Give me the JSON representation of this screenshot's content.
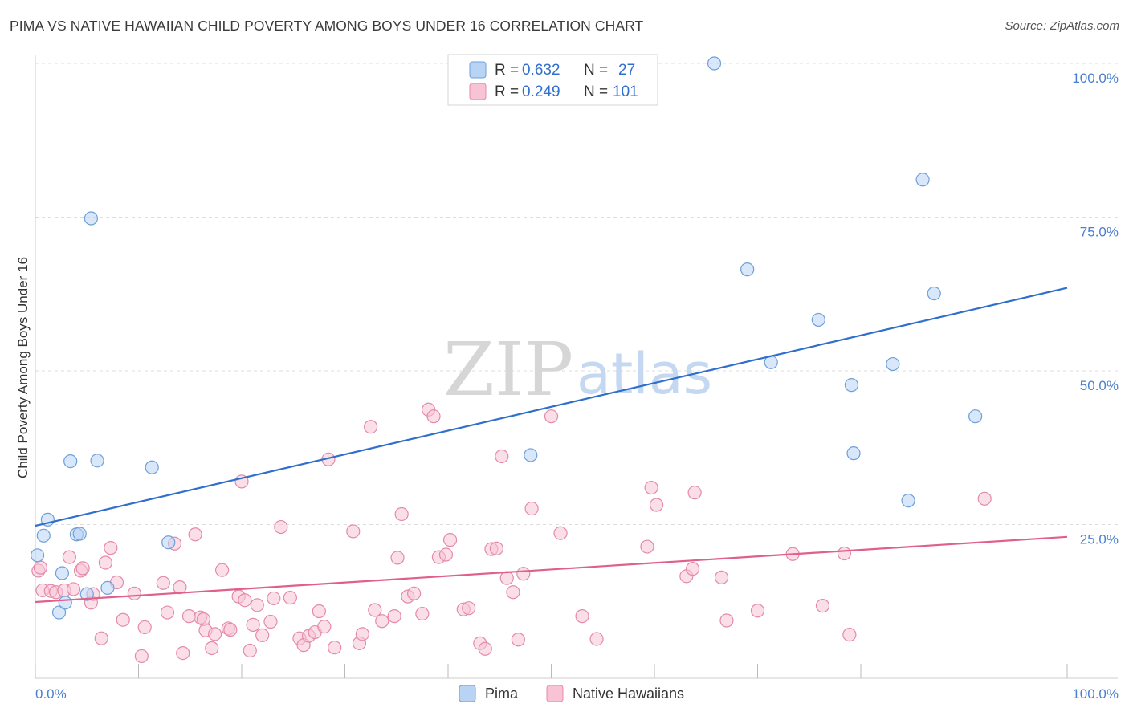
{
  "title": "PIMA VS NATIVE HAWAIIAN CHILD POVERTY AMONG BOYS UNDER 16 CORRELATION CHART",
  "source": "Source: ZipAtlas.com",
  "watermark": {
    "left": "ZIP",
    "right": "atlas"
  },
  "legend": {
    "rows": [
      {
        "r_label": "R =",
        "r_value": "0.632",
        "n_label": "N =",
        "n_value": "27"
      },
      {
        "r_label": "R =",
        "r_value": "0.249",
        "n_label": "N =",
        "n_value": "101"
      }
    ]
  },
  "bottom_legend": [
    "Pima",
    "Native Hawaiians"
  ],
  "colors": {
    "pima_fill": "#b8d3f4",
    "pima_stroke": "#6f9fd8",
    "pima_line": "#2f6fcc",
    "nh_fill": "#f8c4d5",
    "nh_stroke": "#e48aa8",
    "nh_line": "#e0608a",
    "axis_label": "#4a7fd0",
    "grid": "#dddddd"
  },
  "chart_data": {
    "type": "scatter",
    "title": "PIMA VS NATIVE HAWAIIAN CHILD POVERTY AMONG BOYS UNDER 16 CORRELATION CHART",
    "xlabel": "",
    "ylabel": "Child Poverty Among Boys Under 16",
    "xlim": [
      0,
      100
    ],
    "ylim": [
      0,
      100
    ],
    "x_tick_labels": [
      "0.0%",
      "100.0%"
    ],
    "y_ticks": [
      25,
      50,
      75,
      100
    ],
    "y_tick_labels": [
      "25.0%",
      "50.0%",
      "75.0%",
      "100.0%"
    ],
    "series": [
      {
        "name": "Pima",
        "R": 0.632,
        "N": 27,
        "trend": {
          "x0": 0,
          "y0": 24.8,
          "x1": 100,
          "y1": 63.5
        },
        "points": [
          [
            0.2,
            20.0
          ],
          [
            0.8,
            23.2
          ],
          [
            1.2,
            25.8
          ],
          [
            2.3,
            10.7
          ],
          [
            2.6,
            17.1
          ],
          [
            2.9,
            12.3
          ],
          [
            3.4,
            35.3
          ],
          [
            4.0,
            23.4
          ],
          [
            4.3,
            23.5
          ],
          [
            5.0,
            13.7
          ],
          [
            5.4,
            74.8
          ],
          [
            6.0,
            35.4
          ],
          [
            7.0,
            14.7
          ],
          [
            11.3,
            34.3
          ],
          [
            12.9,
            22.1
          ],
          [
            48.0,
            36.3
          ],
          [
            65.8,
            100.0
          ],
          [
            69.0,
            66.5
          ],
          [
            71.3,
            51.4
          ],
          [
            75.9,
            58.3
          ],
          [
            79.1,
            47.7
          ],
          [
            79.3,
            36.6
          ],
          [
            83.1,
            51.1
          ],
          [
            84.6,
            28.9
          ],
          [
            86.0,
            81.1
          ],
          [
            87.1,
            62.6
          ],
          [
            91.1,
            42.6
          ]
        ]
      },
      {
        "name": "Native Hawaiians",
        "R": 0.249,
        "N": 101,
        "trend": {
          "x0": 0,
          "y0": 12.4,
          "x1": 100,
          "y1": 23.0
        },
        "points": [
          [
            0.3,
            17.5
          ],
          [
            0.7,
            14.3
          ],
          [
            1.5,
            14.2
          ],
          [
            2.0,
            14.0
          ],
          [
            2.8,
            14.3
          ],
          [
            3.3,
            19.7
          ],
          [
            3.7,
            14.5
          ],
          [
            4.4,
            17.5
          ],
          [
            4.6,
            17.9
          ],
          [
            5.4,
            12.3
          ],
          [
            5.6,
            13.7
          ],
          [
            6.4,
            6.5
          ],
          [
            6.8,
            18.8
          ],
          [
            7.3,
            21.2
          ],
          [
            7.9,
            15.6
          ],
          [
            8.5,
            9.5
          ],
          [
            9.6,
            13.8
          ],
          [
            10.3,
            3.6
          ],
          [
            10.6,
            8.3
          ],
          [
            12.4,
            15.5
          ],
          [
            12.8,
            10.7
          ],
          [
            13.5,
            21.9
          ],
          [
            14.0,
            14.8
          ],
          [
            14.3,
            4.1
          ],
          [
            14.9,
            10.1
          ],
          [
            15.5,
            23.4
          ],
          [
            16.0,
            9.9
          ],
          [
            16.3,
            9.6
          ],
          [
            16.5,
            7.8
          ],
          [
            17.1,
            4.9
          ],
          [
            17.4,
            7.2
          ],
          [
            18.1,
            17.6
          ],
          [
            18.7,
            8.1
          ],
          [
            18.9,
            7.9
          ],
          [
            19.7,
            13.3
          ],
          [
            20.0,
            32.0
          ],
          [
            20.3,
            12.7
          ],
          [
            20.8,
            4.5
          ],
          [
            21.1,
            8.7
          ],
          [
            21.5,
            11.9
          ],
          [
            22.0,
            7.0
          ],
          [
            22.8,
            9.2
          ],
          [
            23.1,
            13.0
          ],
          [
            23.8,
            24.6
          ],
          [
            24.7,
            13.1
          ],
          [
            25.6,
            6.5
          ],
          [
            26.0,
            5.4
          ],
          [
            26.5,
            6.9
          ],
          [
            27.1,
            7.5
          ],
          [
            27.5,
            10.9
          ],
          [
            28.0,
            8.4
          ],
          [
            28.4,
            35.6
          ],
          [
            29.0,
            5.0
          ],
          [
            30.8,
            23.9
          ],
          [
            31.4,
            5.7
          ],
          [
            31.7,
            7.2
          ],
          [
            32.5,
            40.9
          ],
          [
            32.9,
            11.1
          ],
          [
            33.6,
            9.3
          ],
          [
            34.8,
            10.1
          ],
          [
            35.1,
            19.6
          ],
          [
            35.5,
            26.7
          ],
          [
            36.1,
            13.3
          ],
          [
            36.7,
            13.8
          ],
          [
            37.5,
            10.5
          ],
          [
            38.1,
            43.7
          ],
          [
            38.6,
            42.6
          ],
          [
            39.1,
            19.7
          ],
          [
            39.8,
            20.1
          ],
          [
            40.2,
            22.5
          ],
          [
            41.5,
            11.2
          ],
          [
            42.0,
            11.4
          ],
          [
            43.1,
            5.7
          ],
          [
            43.6,
            4.8
          ],
          [
            44.2,
            21.0
          ],
          [
            44.7,
            21.1
          ],
          [
            45.2,
            36.1
          ],
          [
            45.7,
            16.3
          ],
          [
            46.3,
            14.0
          ],
          [
            46.8,
            6.3
          ],
          [
            47.3,
            17.0
          ],
          [
            48.1,
            27.6
          ],
          [
            50.0,
            42.6
          ],
          [
            50.9,
            23.6
          ],
          [
            53.0,
            10.1
          ],
          [
            54.4,
            6.4
          ],
          [
            59.3,
            21.4
          ],
          [
            59.7,
            31.0
          ],
          [
            60.2,
            28.2
          ],
          [
            63.1,
            16.6
          ],
          [
            63.7,
            17.8
          ],
          [
            63.9,
            30.2
          ],
          [
            66.5,
            16.4
          ],
          [
            67.0,
            9.4
          ],
          [
            70.0,
            11.0
          ],
          [
            73.4,
            20.2
          ],
          [
            76.3,
            11.8
          ],
          [
            78.4,
            20.3
          ],
          [
            78.9,
            7.1
          ],
          [
            92.0,
            29.2
          ],
          [
            0.5,
            18.0
          ]
        ]
      }
    ]
  }
}
